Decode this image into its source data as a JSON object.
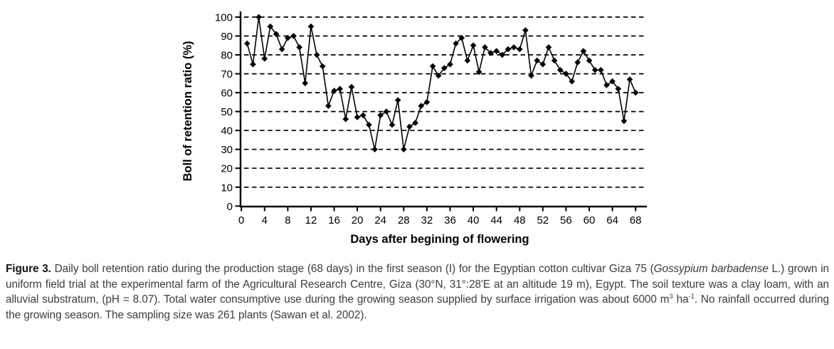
{
  "chart_data": {
    "type": "line",
    "marker": "diamond",
    "line_color": "#000000",
    "marker_color": "#000000",
    "grid": "horizontal-dashed",
    "legend": "none",
    "title": "",
    "xlabel": "Days after begining of flowering",
    "ylabel": "Boll of retention ratio (%)",
    "xlim": [
      0,
      68
    ],
    "ylim": [
      0,
      100
    ],
    "x_ticks": [
      0,
      4,
      8,
      12,
      16,
      20,
      24,
      28,
      32,
      36,
      40,
      44,
      48,
      52,
      56,
      60,
      64,
      68
    ],
    "y_ticks": [
      0,
      10,
      20,
      30,
      40,
      50,
      60,
      70,
      80,
      90,
      100
    ],
    "x": [
      1,
      2,
      3,
      4,
      5,
      6,
      7,
      8,
      9,
      10,
      11,
      12,
      13,
      14,
      15,
      16,
      17,
      18,
      19,
      20,
      21,
      22,
      23,
      24,
      25,
      26,
      27,
      28,
      29,
      30,
      31,
      32,
      33,
      34,
      35,
      36,
      37,
      38,
      39,
      40,
      41,
      42,
      43,
      44,
      45,
      46,
      47,
      48,
      49,
      50,
      51,
      52,
      53,
      54,
      55,
      56,
      57,
      58,
      59,
      60,
      61,
      62,
      63,
      64,
      65,
      66,
      67,
      68
    ],
    "values": [
      86,
      75,
      100,
      78,
      95,
      91,
      83,
      89,
      90,
      84,
      65,
      95,
      80,
      74,
      53,
      61,
      62,
      46,
      63,
      47,
      48,
      43,
      30,
      48,
      50,
      43,
      56,
      30,
      42,
      44,
      53,
      55,
      74,
      69,
      73,
      75,
      86,
      89,
      77,
      85,
      71,
      84,
      81,
      82,
      80,
      83,
      84,
      83,
      93,
      69,
      77,
      75,
      84,
      77,
      72,
      70,
      66,
      76,
      82,
      77,
      72,
      72,
      64,
      66,
      62,
      45,
      67,
      60
    ]
  },
  "caption": {
    "segments": [
      {
        "text": "Figure 3.",
        "bold": true
      },
      {
        "text": " Daily boll retention ratio during the production stage (68 days) in the first season (I) for the Egyptian cotton cultivar Giza 75 ("
      },
      {
        "text": "Gossypium barbadense",
        "italic": true
      },
      {
        "text": " L.) grown in uniform field trial at the experimental farm of the Agricultural Research Centre, Giza (30°N, 31°:28'E at an altitude 19 m), Egypt. The soil texture was a clay loam, with an alluvial substratum, (pH = 8.07). Total water consumptive use during the growing season supplied by surface irrigation was about 6000 m"
      },
      {
        "text": "3",
        "sup": true
      },
      {
        "text": " ha"
      },
      {
        "text": "-1",
        "sup": true
      },
      {
        "text": ". No rainfall occurred during the growing season. The sampling size was 261 plants (Sawan et al. 2002)."
      }
    ]
  }
}
